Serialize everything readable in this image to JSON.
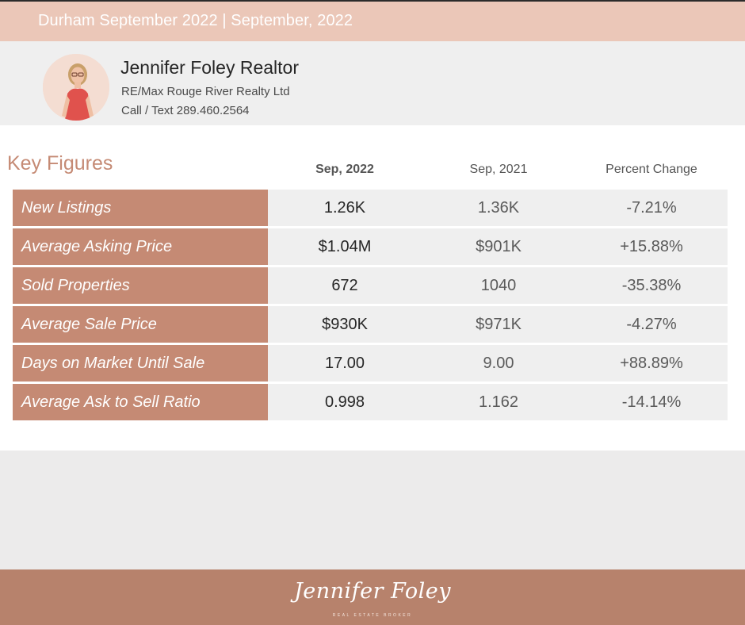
{
  "header": {
    "title": "Durham September 2022 | September, 2022"
  },
  "agent": {
    "name": "Jennifer Foley Realtor",
    "brokerage": "RE/Max Rouge River Realty Ltd",
    "phone": "Call / Text 289.460.2564"
  },
  "key_figures": {
    "title": "Key Figures",
    "columns": [
      "Sep, 2022",
      "Sep, 2021",
      "Percent Change"
    ],
    "rows": [
      {
        "label": "New Listings",
        "current": "1.26K",
        "previous": "1.36K",
        "change": "-7.21%"
      },
      {
        "label": "Average Asking Price",
        "current": "$1.04M",
        "previous": "$901K",
        "change": "+15.88%"
      },
      {
        "label": "Sold Properties",
        "current": "672",
        "previous": "1040",
        "change": "-35.38%"
      },
      {
        "label": "Average Sale Price",
        "current": "$930K",
        "previous": "$971K",
        "change": "-4.27%"
      },
      {
        "label": "Days on Market Until Sale",
        "current": "17.00",
        "previous": "9.00",
        "change": "+88.89%"
      },
      {
        "label": "Average Ask to Sell Ratio",
        "current": "0.998",
        "previous": "1.162",
        "change": "-14.14%"
      }
    ]
  },
  "footer": {
    "brand": "Jennifer Foley",
    "tagline": "REAL ESTATE BROKER"
  },
  "colors": {
    "accent": "#c58a74",
    "header": "#ebc7b8",
    "footer": "#b7826c"
  }
}
